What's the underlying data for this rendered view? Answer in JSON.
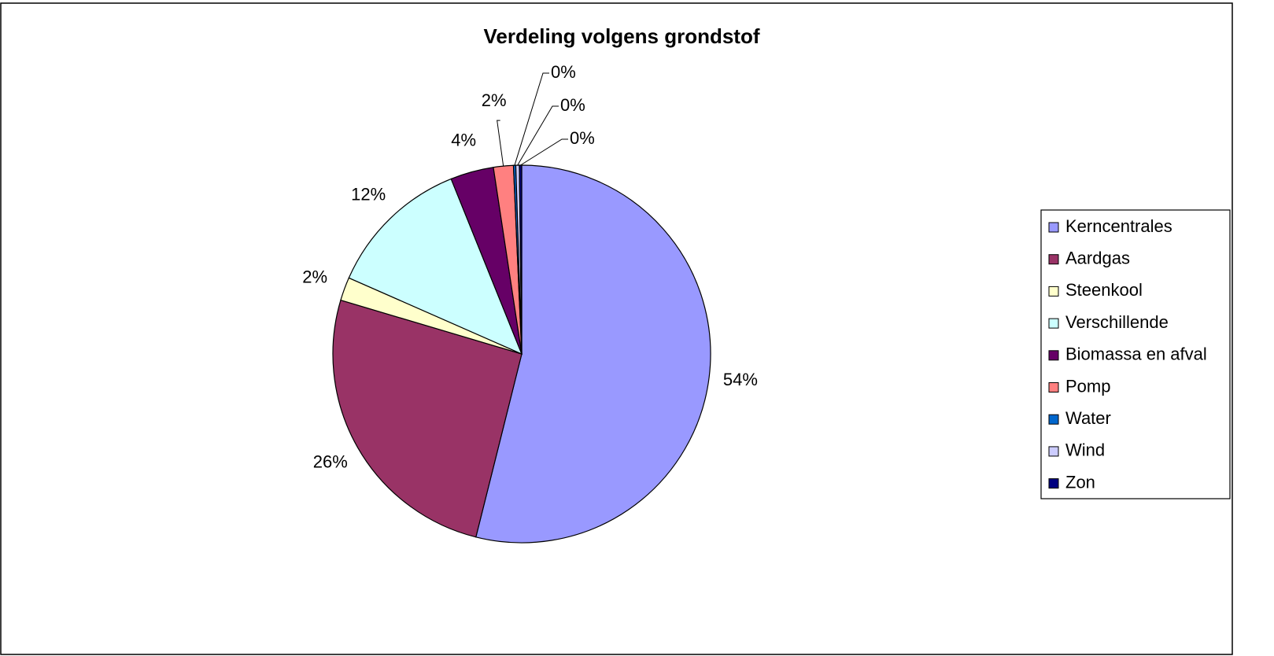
{
  "chart_data": {
    "type": "pie",
    "title": "Verdeling volgens grondstof",
    "categories": [
      "Kerncentrales",
      "Aardgas",
      "Steenkool",
      "Verschillende",
      "Biomassa en afval",
      "Pomp",
      "Water",
      "Wind",
      "Zon"
    ],
    "values": [
      53.9,
      25.7,
      2.0,
      12.3,
      3.7,
      1.7,
      0.2,
      0.3,
      0.2
    ],
    "value_labels": [
      "54%",
      "26%",
      "2%",
      "12%",
      "4%",
      "2%",
      "0%",
      "0%",
      "0%"
    ],
    "colors": [
      "#9999ff",
      "#993366",
      "#ffffcc",
      "#ccffff",
      "#660066",
      "#ff8080",
      "#0066cc",
      "#ccccff",
      "#000080"
    ],
    "legend": "right"
  }
}
